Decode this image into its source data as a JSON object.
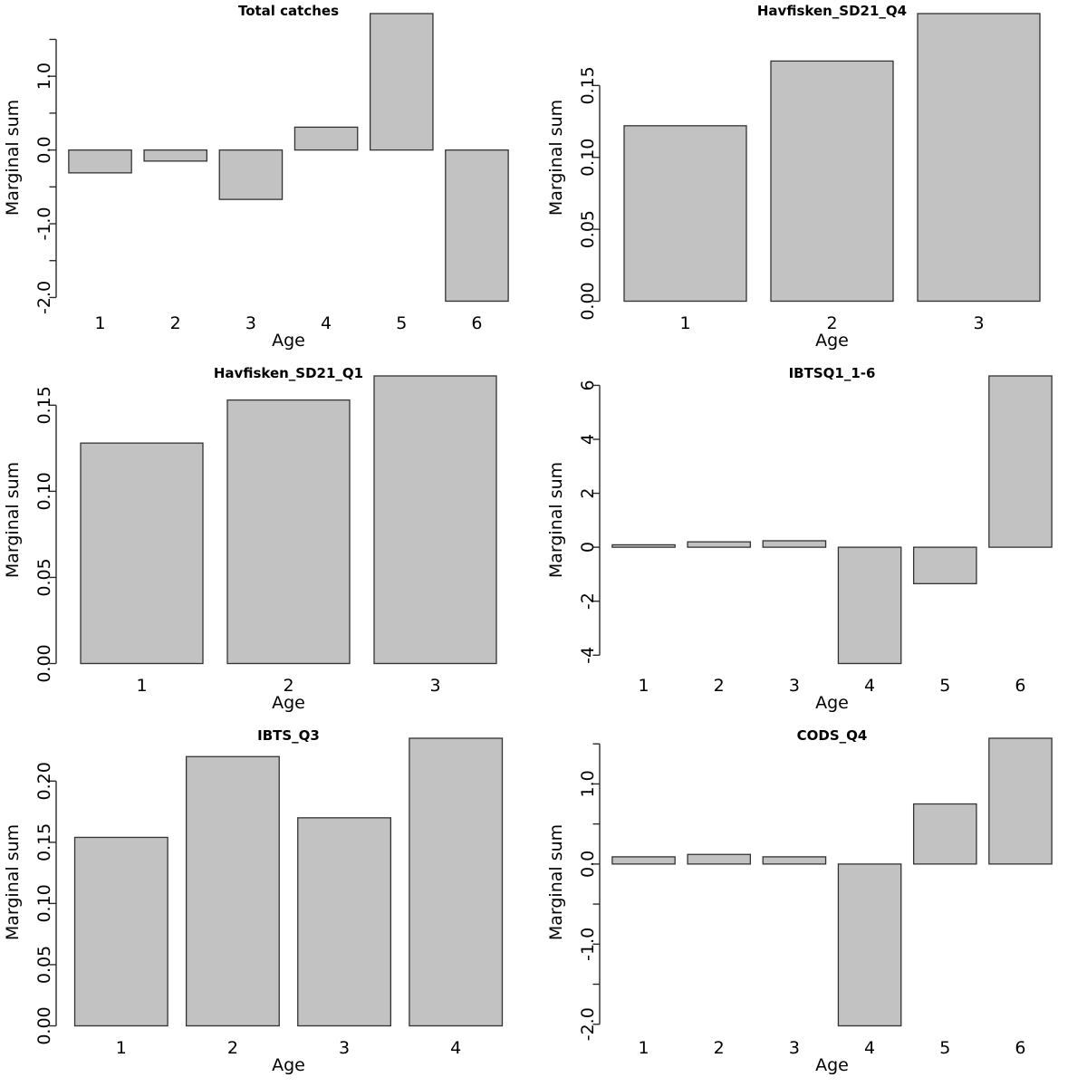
{
  "colors": {
    "bar_fill": "#c2c2c2",
    "bar_border": "#333333",
    "axis": "#2b2b2b",
    "text": "#000000",
    "background": "#ffffff"
  },
  "chart_data": [
    {
      "type": "bar",
      "title": "Total catches",
      "xlabel": "Age",
      "ylabel": "Marginal sum",
      "categories": [
        "1",
        "2",
        "3",
        "4",
        "5",
        "6"
      ],
      "values": [
        -0.31,
        -0.15,
        -0.67,
        0.31,
        1.85,
        -2.05
      ],
      "ylim": [
        -2.05,
        1.85
      ],
      "grid": false,
      "legend": "none",
      "yticks": [
        {
          "v": -2.0,
          "label": "-2.0"
        },
        {
          "v": -1.5,
          "label": ""
        },
        {
          "v": -1.0,
          "label": "-1.0"
        },
        {
          "v": -0.5,
          "label": ""
        },
        {
          "v": 0.0,
          "label": "0.0"
        },
        {
          "v": 0.5,
          "label": ""
        },
        {
          "v": 1.0,
          "label": "1.0"
        },
        {
          "v": 1.5,
          "label": ""
        }
      ]
    },
    {
      "type": "bar",
      "title": "Havfisken_SD21_Q4",
      "xlabel": "Age",
      "ylabel": "Marginal sum",
      "categories": [
        "1",
        "2",
        "3"
      ],
      "values": [
        0.122,
        0.167,
        0.2
      ],
      "ylim": [
        0,
        0.2
      ],
      "grid": false,
      "legend": "none",
      "yticks": [
        {
          "v": 0.0,
          "label": "0.00"
        },
        {
          "v": 0.05,
          "label": "0.05"
        },
        {
          "v": 0.1,
          "label": "0.10"
        },
        {
          "v": 0.15,
          "label": "0.15"
        }
      ]
    },
    {
      "type": "bar",
      "title": "Havfisken_SD21_Q1",
      "xlabel": "Age",
      "ylabel": "Marginal sum",
      "categories": [
        "1",
        "2",
        "3"
      ],
      "values": [
        0.128,
        0.153,
        0.167
      ],
      "ylim": [
        0,
        0.167
      ],
      "grid": false,
      "legend": "none",
      "yticks": [
        {
          "v": 0.0,
          "label": "0.00"
        },
        {
          "v": 0.05,
          "label": "0.05"
        },
        {
          "v": 0.1,
          "label": "0.10"
        },
        {
          "v": 0.15,
          "label": "0.15"
        }
      ]
    },
    {
      "type": "bar",
      "title": "IBTSQ1_1-6",
      "xlabel": "Age",
      "ylabel": "Marginal sum",
      "categories": [
        "1",
        "2",
        "3",
        "4",
        "5",
        "6"
      ],
      "values": [
        0.09,
        0.2,
        0.24,
        -4.31,
        -1.35,
        6.35
      ],
      "ylim": [
        -4.31,
        6.35
      ],
      "grid": false,
      "legend": "none",
      "yticks": [
        {
          "v": -4,
          "label": "-4"
        },
        {
          "v": -2,
          "label": "-2"
        },
        {
          "v": 0,
          "label": "0"
        },
        {
          "v": 2,
          "label": "2"
        },
        {
          "v": 4,
          "label": "4"
        },
        {
          "v": 6,
          "label": "6"
        }
      ]
    },
    {
      "type": "bar",
      "title": "IBTS_Q3",
      "xlabel": "Age",
      "ylabel": "Marginal sum",
      "categories": [
        "1",
        "2",
        "3",
        "4"
      ],
      "values": [
        0.154,
        0.22,
        0.17,
        0.235
      ],
      "ylim": [
        0,
        0.235
      ],
      "grid": false,
      "legend": "none",
      "yticks": [
        {
          "v": 0.0,
          "label": "0.00"
        },
        {
          "v": 0.05,
          "label": "0.05"
        },
        {
          "v": 0.1,
          "label": "0.10"
        },
        {
          "v": 0.15,
          "label": "0.15"
        },
        {
          "v": 0.2,
          "label": "0.20"
        }
      ]
    },
    {
      "type": "bar",
      "title": "CODS_Q4",
      "xlabel": "Age",
      "ylabel": "Marginal sum",
      "categories": [
        "1",
        "2",
        "3",
        "4",
        "5",
        "6"
      ],
      "values": [
        0.09,
        0.12,
        0.09,
        -2.02,
        0.75,
        1.57
      ],
      "ylim": [
        -2.02,
        1.57
      ],
      "grid": false,
      "legend": "none",
      "yticks": [
        {
          "v": -2.0,
          "label": "-2.0"
        },
        {
          "v": -1.5,
          "label": ""
        },
        {
          "v": -1.0,
          "label": "-1.0"
        },
        {
          "v": -0.5,
          "label": ""
        },
        {
          "v": 0.0,
          "label": "0.0"
        },
        {
          "v": 0.5,
          "label": ""
        },
        {
          "v": 1.0,
          "label": "1.0"
        },
        {
          "v": 1.5,
          "label": ""
        }
      ]
    }
  ]
}
